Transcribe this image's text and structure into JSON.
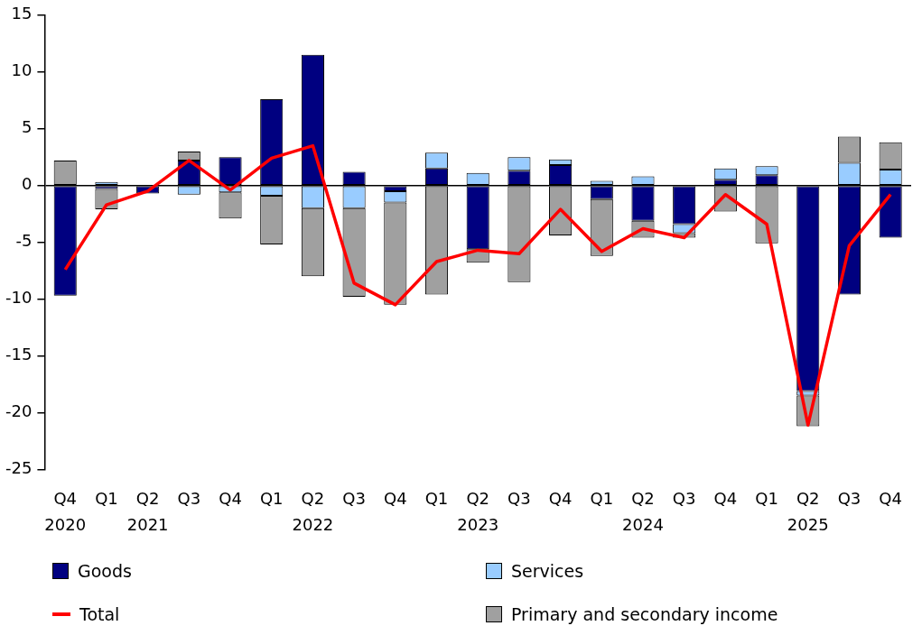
{
  "chart_data": {
    "type": "bar",
    "stacked": true,
    "categories": [
      "Q4\n2020",
      "Q1",
      "Q2\n2021",
      "Q3",
      "Q4",
      "Q1",
      "Q2\n2022",
      "Q3",
      "Q4",
      "Q1",
      "Q2\n2023",
      "Q3",
      "Q4",
      "Q1",
      "Q2\n2024",
      "Q3",
      "Q4",
      "Q1",
      "Q2\n2025",
      "Q3",
      "Q4"
    ],
    "series": [
      {
        "name": "Goods",
        "color": "#000080",
        "values": [
          -9.7,
          -0.3,
          -0.7,
          2.2,
          2.5,
          7.6,
          11.5,
          1.2,
          -0.5,
          1.5,
          -5.6,
          1.3,
          1.8,
          -1.2,
          -3.1,
          -3.4,
          0.5,
          0.9,
          -18.1,
          -9.6,
          -4.6
        ]
      },
      {
        "name": "Services",
        "color": "#99ccff",
        "values": [
          null,
          0.3,
          null,
          -0.8,
          -0.6,
          -0.9,
          -2.0,
          -2.0,
          -1.0,
          1.4,
          1.1,
          1.2,
          0.5,
          0.4,
          0.8,
          -0.8,
          1.0,
          0.8,
          -0.4,
          2.0,
          1.4
        ]
      },
      {
        "name": "Primary and secondary income",
        "color": "#a0a0a0",
        "values": [
          2.2,
          -1.8,
          null,
          0.8,
          -2.3,
          -4.3,
          -6.0,
          -7.8,
          -9.0,
          -9.6,
          -1.2,
          -8.5,
          -4.4,
          -5.0,
          -1.5,
          -0.4,
          -2.3,
          -5.1,
          -2.7,
          2.3,
          2.4
        ]
      },
      {
        "name": "Total",
        "type": "line",
        "color": "#ff0000",
        "values": [
          -7.4,
          -1.7,
          -0.5,
          2.2,
          -0.4,
          2.4,
          3.5,
          -8.6,
          -10.5,
          -6.7,
          -5.7,
          -6.0,
          -2.1,
          -5.8,
          -3.8,
          -4.6,
          -0.8,
          -3.4,
          -21.1,
          -5.3,
          -0.8
        ]
      }
    ],
    "ylim": [
      -25,
      15
    ],
    "yticks": [
      -25,
      -20,
      -15,
      -10,
      -5,
      0,
      5,
      10,
      15
    ],
    "legend": "bottom",
    "marker": "none"
  }
}
